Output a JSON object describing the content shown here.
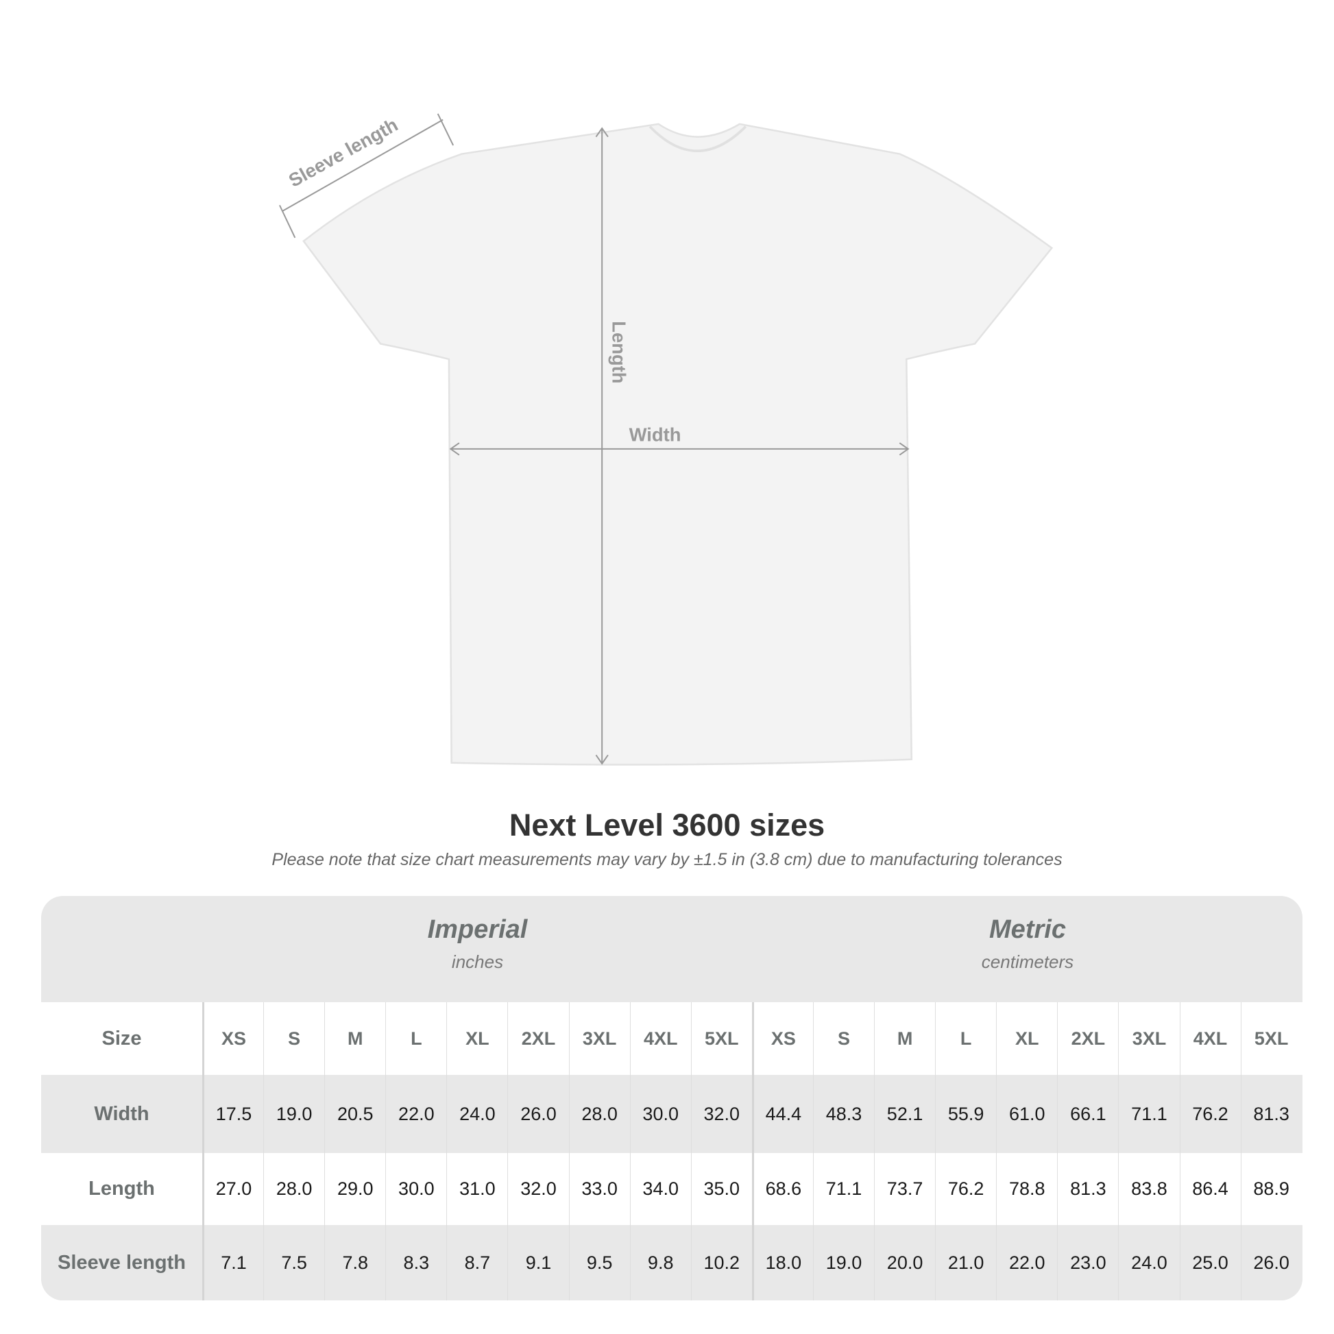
{
  "diagram": {
    "labels": {
      "sleeve": "Sleeve length",
      "length": "Length",
      "width": "Width"
    },
    "shirt_color": "#f3f3f3",
    "arrow_color": "#999999"
  },
  "title": "Next Level 3600 sizes",
  "subtitle": "Please note that size chart measurements may vary by ±1.5 in (3.8 cm) due to manufacturing tolerances",
  "table": {
    "imperial": {
      "label": "Imperial",
      "unit": "inches"
    },
    "metric": {
      "label": "Metric",
      "unit": "centimeters"
    },
    "size_label": "Size",
    "sizes": [
      "XS",
      "S",
      "M",
      "L",
      "XL",
      "2XL",
      "3XL",
      "4XL",
      "5XL"
    ],
    "rows": [
      {
        "label": "Width",
        "imperial": [
          "17.5",
          "19.0",
          "20.5",
          "22.0",
          "24.0",
          "26.0",
          "28.0",
          "30.0",
          "32.0"
        ],
        "metric": [
          "44.4",
          "48.3",
          "52.1",
          "55.9",
          "61.0",
          "66.1",
          "71.1",
          "76.2",
          "81.3"
        ]
      },
      {
        "label": "Length",
        "imperial": [
          "27.0",
          "28.0",
          "29.0",
          "30.0",
          "31.0",
          "32.0",
          "33.0",
          "34.0",
          "35.0"
        ],
        "metric": [
          "68.6",
          "71.1",
          "73.7",
          "76.2",
          "78.8",
          "81.3",
          "83.8",
          "86.4",
          "88.9"
        ]
      },
      {
        "label": "Sleeve length",
        "imperial": [
          "7.1",
          "7.5",
          "7.8",
          "8.3",
          "8.7",
          "9.1",
          "9.5",
          "9.8",
          "10.2"
        ],
        "metric": [
          "18.0",
          "19.0",
          "20.0",
          "21.0",
          "22.0",
          "23.0",
          "24.0",
          "25.0",
          "26.0"
        ]
      }
    ]
  }
}
